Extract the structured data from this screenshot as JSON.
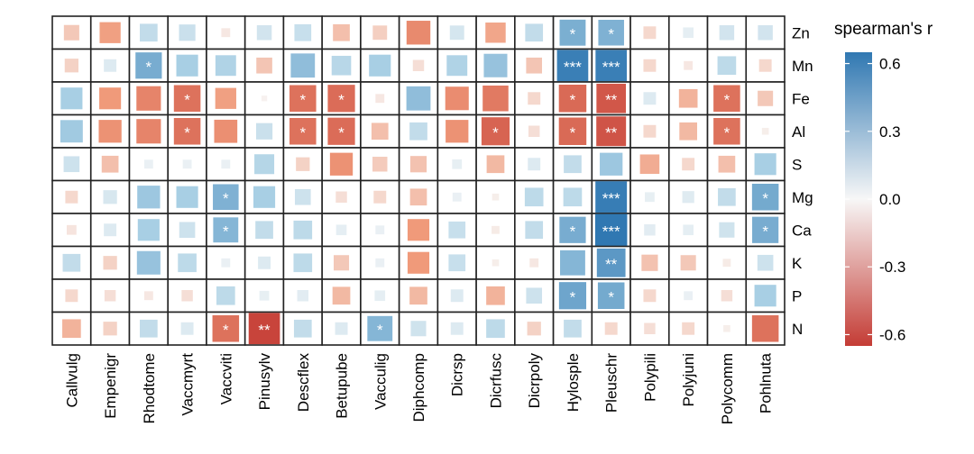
{
  "chart_data": {
    "type": "heatmap",
    "legend_title": "spearman's r",
    "legend_position": "right",
    "legend_ticks": [
      0.6,
      0.3,
      0.0,
      -0.3,
      -0.6
    ],
    "legend_tick_labels": [
      "0.6",
      "0.3",
      "0.0",
      "-0.3",
      "-0.6"
    ],
    "range": [
      -0.65,
      0.65
    ],
    "colors": {
      "neg": "#c43c35",
      "mid": "#f7f7f7",
      "pos": "#3078b2"
    },
    "x": [
      "Callvulg",
      "Empenigr",
      "Rhodtome",
      "Vaccmyrt",
      "Vaccviti",
      "Pinusylv",
      "Descflex",
      "Betupube",
      "Vacculig",
      "Diphcomp",
      "Dicrsp",
      "Dicrfusc",
      "Dicrpoly",
      "Hylosple",
      "Pleuschr",
      "Polypili",
      "Polyjuni",
      "Polycomm",
      "Pohlnuta"
    ],
    "y": [
      "Zn",
      "Mn",
      "Fe",
      "Al",
      "S",
      "Mg",
      "Ca",
      "K",
      "P",
      "N"
    ],
    "values": [
      [
        -0.15,
        -0.28,
        0.2,
        0.17,
        -0.05,
        0.14,
        0.18,
        -0.18,
        -0.13,
        -0.36,
        0.13,
        -0.26,
        0.2,
        0.43,
        0.42,
        -0.1,
        0.07,
        0.14,
        0.14
      ],
      [
        -0.12,
        0.1,
        0.44,
        0.3,
        0.27,
        -0.16,
        0.37,
        0.24,
        0.3,
        -0.08,
        0.27,
        0.35,
        -0.16,
        0.62,
        0.62,
        -0.1,
        -0.05,
        0.22,
        -0.1
      ],
      [
        0.3,
        -0.3,
        -0.38,
        -0.45,
        -0.28,
        -0.02,
        -0.45,
        -0.47,
        -0.05,
        0.37,
        -0.35,
        -0.42,
        -0.1,
        -0.48,
        -0.55,
        0.1,
        -0.22,
        -0.45,
        -0.15
      ],
      [
        0.32,
        -0.33,
        -0.38,
        -0.45,
        -0.34,
        0.17,
        -0.45,
        -0.47,
        -0.18,
        0.2,
        -0.33,
        -0.5,
        -0.08,
        -0.48,
        -0.56,
        -0.1,
        -0.2,
        -0.45,
        -0.03
      ],
      [
        0.16,
        -0.18,
        0.05,
        0.05,
        0.05,
        0.25,
        -0.12,
        -0.33,
        -0.14,
        -0.17,
        0.06,
        -0.2,
        0.1,
        0.2,
        0.33,
        -0.24,
        -0.1,
        -0.18,
        0.3
      ],
      [
        -0.1,
        0.12,
        0.33,
        0.3,
        0.42,
        0.3,
        0.16,
        -0.08,
        -0.1,
        -0.18,
        0.05,
        -0.03,
        0.22,
        0.22,
        0.63,
        0.06,
        0.09,
        0.2,
        0.45
      ],
      [
        -0.06,
        0.1,
        0.3,
        0.16,
        0.4,
        0.2,
        0.22,
        0.07,
        0.05,
        -0.3,
        0.18,
        -0.04,
        0.2,
        0.44,
        0.65,
        0.08,
        0.07,
        0.15,
        0.44
      ],
      [
        0.2,
        -0.12,
        0.35,
        0.22,
        0.05,
        0.1,
        0.22,
        -0.15,
        0.05,
        -0.3,
        0.18,
        -0.03,
        -0.05,
        0.4,
        0.52,
        -0.17,
        -0.15,
        -0.04,
        0.16
      ],
      [
        -0.1,
        -0.08,
        -0.05,
        -0.08,
        0.22,
        0.06,
        0.08,
        -0.2,
        0.07,
        -0.2,
        0.1,
        -0.22,
        0.16,
        0.47,
        0.45,
        -0.1,
        0.05,
        -0.08,
        0.3
      ],
      [
        -0.22,
        -0.12,
        0.2,
        0.1,
        -0.45,
        -0.62,
        0.2,
        0.1,
        0.4,
        0.15,
        0.1,
        0.22,
        -0.12,
        0.2,
        -0.1,
        -0.08,
        -0.1,
        -0.03,
        -0.45
      ]
    ],
    "significance": [
      [
        "",
        "",
        "",
        "",
        "",
        "",
        "",
        "",
        "",
        "",
        "",
        "",
        "",
        "*",
        "*",
        "",
        "",
        "",
        ""
      ],
      [
        "",
        "",
        "*",
        "",
        "",
        "",
        "",
        "",
        "",
        "",
        "",
        "",
        "",
        "***",
        "***",
        "",
        "",
        "",
        ""
      ],
      [
        "",
        "",
        "",
        "*",
        "",
        "",
        "*",
        "*",
        "",
        "",
        "",
        "",
        "",
        "*",
        "**",
        "",
        "",
        "*",
        ""
      ],
      [
        "",
        "",
        "",
        "*",
        "",
        "",
        "*",
        "*",
        "",
        "",
        "",
        "*",
        "",
        "*",
        "**",
        "",
        "",
        "*",
        ""
      ],
      [
        "",
        "",
        "",
        "",
        "",
        "",
        "",
        "",
        "",
        "",
        "",
        "",
        "",
        "",
        "",
        "",
        "",
        "",
        ""
      ],
      [
        "",
        "",
        "",
        "",
        "*",
        "",
        "",
        "",
        "",
        "",
        "",
        "",
        "",
        "",
        "***",
        "",
        "",
        "",
        "*"
      ],
      [
        "",
        "",
        "",
        "",
        "*",
        "",
        "",
        "",
        "",
        "",
        "",
        "",
        "",
        "*",
        "***",
        "",
        "",
        "",
        "*"
      ],
      [
        "",
        "",
        "",
        "",
        "",
        "",
        "",
        "",
        "",
        "",
        "",
        "",
        "",
        "",
        "**",
        "",
        "",
        "",
        ""
      ],
      [
        "",
        "",
        "",
        "",
        "",
        "",
        "",
        "",
        "",
        "",
        "",
        "",
        "",
        "*",
        "*",
        "",
        "",
        "",
        ""
      ],
      [
        "",
        "",
        "",
        "",
        "*",
        "**",
        "",
        "",
        "*",
        "",
        "",
        "",
        "",
        "",
        "",
        "",
        "",
        "",
        ""
      ]
    ]
  }
}
